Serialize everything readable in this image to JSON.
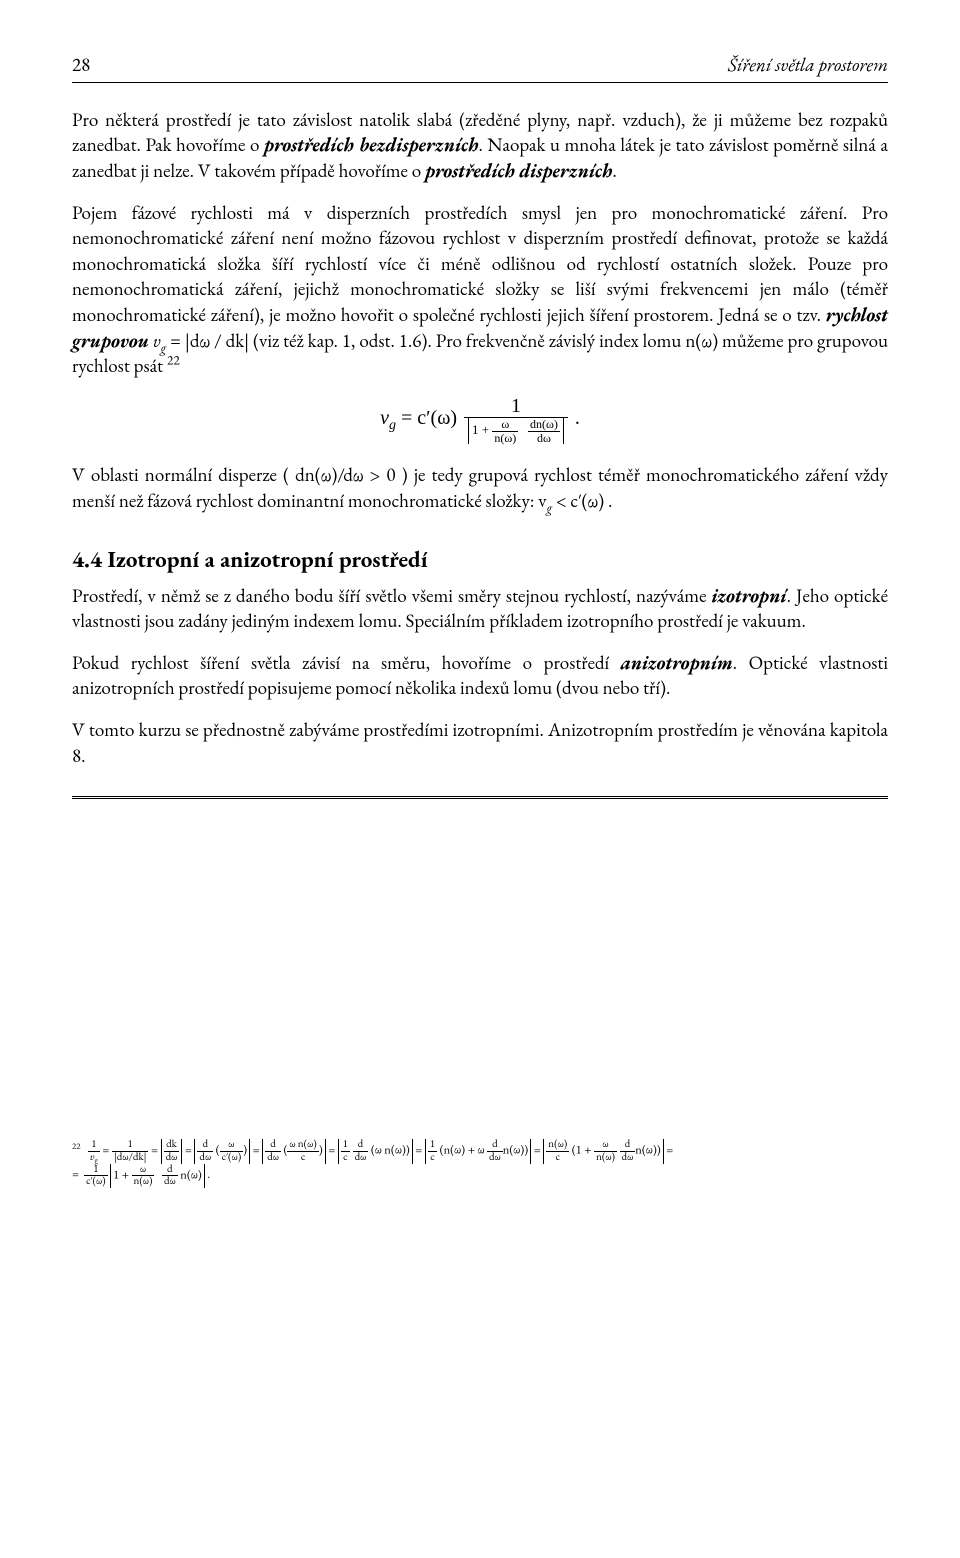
{
  "header": {
    "page_number": "28",
    "running_title": "Šíření světla prostorem"
  },
  "p1_a": "Pro některá prostředí je tato závislost natolik slabá (zředěné plyny, např. vzduch), že ji můžeme bez rozpaků zanedbat. Pak hovoříme o ",
  "p1_b": "prostředích bezdisperzních",
  "p1_c": ". Naopak u mnoha látek je tato závislost poměrně silná a zanedbat ji nelze. V takovém případě hovoříme o ",
  "p1_d": "prostředích disperzních",
  "p1_e": ".",
  "p2_a": "Pojem fázové rychlosti má v disperzních prostředích smysl jen pro monochromatické záření. Pro nemonochromatické záření není možno fázovou rychlost v disperzním prostředí definovat, protože se každá monochromatická složka šíří rychlostí více či méně odlišnou od rychlostí ostatních složek. Pouze pro nemonochromatická záření, jejichž monochromatické složky se liší svými frekvencemi jen málo (téměř monochromatické záření), je možno hovořit o společné rychlosti jejich šíření prostorem. Jedná se o tzv. ",
  "p2_b": "rychlost grupovou",
  "p2_c": "  v",
  "p2_g": "g",
  "p2_d": " = |dω / dk|  (viz též kap. 1, odst. 1.6). Pro frekvenčně závislý index lomu  n(ω)  můžeme pro grupovou rychlost psát ",
  "p2_fn": "22",
  "eq_lhs": "v",
  "eq_sub": "g",
  "eq_eq": " = c′(ω) ",
  "eq_num": "1",
  "eq_den_1": "1 + ",
  "eq_den_f1n": "ω",
  "eq_den_f1d": "n(ω)",
  "eq_den_f2n": "dn(ω)",
  "eq_den_f2d": "dω",
  "eq_dot": " .",
  "p3": "V oblasti normální disperze ( dn(ω)/dω > 0 ) je tedy grupová rychlost téměř monochromatického záření vždy menší než fázová rychlost dominantní monochromatické složky: v",
  "p3_g": "g",
  "p3_b": " < c′(ω) .",
  "h2": "4.4 Izotropní a anizotropní prostředí",
  "p4_a": "Prostředí, v němž se z daného bodu šíří světlo všemi směry stejnou rychlostí, nazýváme ",
  "p4_b": "izotropní",
  "p4_c": ". Jeho optické vlastnosti jsou zadány jediným indexem lomu. Speciálním příkladem izotropního prostředí je vakuum.",
  "p5_a": "Pokud rychlost šíření světla závisí na směru, hovoříme o prostředí ",
  "p5_b": "anizotropním",
  "p5_c": ". Optické vlastnosti anizotropních prostředí popisujeme pomocí několika indexů lomu (dvou nebo tří).",
  "p6": "V tomto kurzu se přednostně zabýváme prostředími izotropními. Anizotropním prostředím je věnována kapitola 8.",
  "fn_mark": "22",
  "fn_seg1": " = ",
  "fn_frac1n": "1",
  "fn_frac1d_a": "v",
  "fn_frac1d_b": "g",
  "fn_frac2n": "1",
  "fn_frac2d": "|dω/dk|",
  "fn_frac3n": "dk",
  "fn_frac3d": "dω",
  "fn_frac4n": "d",
  "fn_frac4d": "dω",
  "fn_par4a": "ω",
  "fn_par4b": "c′(ω)",
  "fn_frac5n": "d",
  "fn_frac5d": "dω",
  "fn_par5a": "ω n(ω)",
  "fn_par5b": "c",
  "fn_frac6n": "1",
  "fn_frac6d": "c",
  "fn_frac6_dn": "d",
  "fn_frac6_dd": "dω",
  "fn_par6": "(ω n(ω))",
  "fn_frac7n": "1",
  "fn_frac7d": "c",
  "fn_par7a": "n(ω) + ω ",
  "fn_par7_dn": "d",
  "fn_par7_dd": "dω",
  "fn_par7b": "n(ω)",
  "fn_frac8n": "n(ω)",
  "fn_frac8d": "c",
  "fn_par8a": "1 + ",
  "fn_par8_f1n": "ω",
  "fn_par8_f1d": "n(ω)",
  "fn_par8_f2n": "d",
  "fn_par8_f2d": "dω",
  "fn_par8b": "n(ω)",
  "fn_line2_f1n": "1",
  "fn_line2_f1d": "c′(ω)",
  "fn_line2_abs_a": "1 + ",
  "fn_line2_abs_f1n": "ω",
  "fn_line2_abs_f1d": "n(ω)",
  "fn_line2_abs_f2n": "d",
  "fn_line2_abs_f2d": "dω",
  "fn_line2_abs_b": "n(ω)",
  "fn_dot": " ."
}
